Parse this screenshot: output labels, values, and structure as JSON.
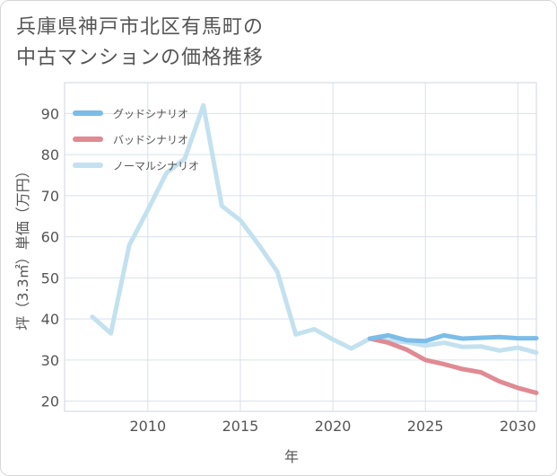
{
  "title_line1": "兵庫県神戸市北区有馬町の",
  "title_line2": "中古マンションの価格推移",
  "chart_data": {
    "type": "line",
    "xlabel": "年",
    "ylabel": "坪（3.3㎡）単価（万円）",
    "xlim": [
      2005.5,
      2031
    ],
    "ylim": [
      17.5,
      97.5
    ],
    "xticks": [
      2010,
      2015,
      2020,
      2025,
      2030
    ],
    "yticks": [
      20,
      30,
      40,
      50,
      60,
      70,
      80,
      90
    ],
    "grid": true,
    "legend_position": "top-left",
    "series": [
      {
        "name": "グッドシナリオ",
        "color": "#7bbde8",
        "x": [
          2022,
          2023,
          2024,
          2025,
          2026,
          2027,
          2028,
          2029,
          2030,
          2031
        ],
        "y": [
          35.2,
          36.0,
          34.8,
          34.6,
          36.0,
          35.2,
          35.4,
          35.6,
          35.3,
          35.3
        ]
      },
      {
        "name": "バッドシナリオ",
        "color": "#e08a93",
        "x": [
          2022,
          2023,
          2024,
          2025,
          2026,
          2027,
          2028,
          2029,
          2030,
          2031
        ],
        "y": [
          35.2,
          34.2,
          32.5,
          30.0,
          29.0,
          27.8,
          27.0,
          24.8,
          23.2,
          22.0
        ]
      },
      {
        "name": "ノーマルシナリオ",
        "color": "#c3e1ef",
        "x": [
          2007,
          2008,
          2009,
          2010,
          2011,
          2012,
          2013,
          2014,
          2015,
          2016,
          2017,
          2018,
          2019,
          2020,
          2021,
          2022,
          2023,
          2024,
          2025,
          2026,
          2027,
          2028,
          2029,
          2030,
          2031
        ],
        "y": [
          40.5,
          36.5,
          58.0,
          66.5,
          75.5,
          79.0,
          92.0,
          67.5,
          64.0,
          58.0,
          51.5,
          36.2,
          37.5,
          35.0,
          32.8,
          35.2,
          34.7,
          34.3,
          33.5,
          34.2,
          33.2,
          33.3,
          32.3,
          33.0,
          31.8
        ]
      }
    ]
  }
}
